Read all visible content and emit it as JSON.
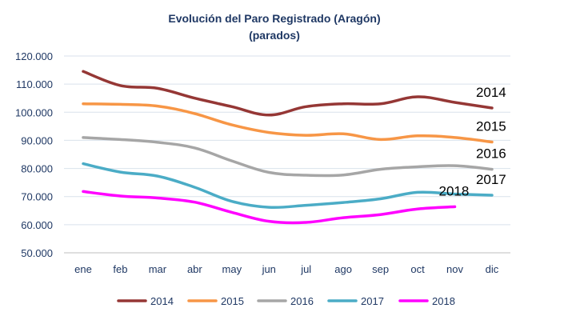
{
  "chart_data": {
    "type": "line",
    "title": "Evolución del Paro Registrado (Aragón)",
    "subtitle": "(parados)",
    "xlabel": "",
    "ylabel": "",
    "categories": [
      "ene",
      "feb",
      "mar",
      "abr",
      "may",
      "jun",
      "jul",
      "ago",
      "sep",
      "oct",
      "nov",
      "dic"
    ],
    "ylim": [
      50000,
      120000
    ],
    "yticks": [
      {
        "value": 50000,
        "label": "50.000"
      },
      {
        "value": 60000,
        "label": "60.000"
      },
      {
        "value": 70000,
        "label": "70.000"
      },
      {
        "value": 80000,
        "label": "80.000"
      },
      {
        "value": 90000,
        "label": "90.000"
      },
      {
        "value": 100000,
        "label": "100.000"
      },
      {
        "value": 110000,
        "label": "110.000"
      },
      {
        "value": 120000,
        "label": "120.000"
      }
    ],
    "grid": true,
    "legend_position": "bottom",
    "series": [
      {
        "name": "2014",
        "color": "#953735",
        "values": [
          114500,
          109500,
          108500,
          105000,
          102000,
          99000,
          102000,
          103000,
          103000,
          105500,
          103500,
          101500
        ]
      },
      {
        "name": "2015",
        "color": "#f79646",
        "values": [
          103000,
          102800,
          102200,
          99500,
          95500,
          92800,
          91800,
          92300,
          90300,
          91600,
          91000,
          89400
        ]
      },
      {
        "name": "2016",
        "color": "#a6a6a6",
        "values": [
          91000,
          90300,
          89300,
          87300,
          82700,
          78600,
          77600,
          77700,
          79700,
          80600,
          81000,
          79700
        ]
      },
      {
        "name": "2017",
        "color": "#4bacc6",
        "values": [
          81700,
          78700,
          77300,
          73300,
          68300,
          66200,
          66900,
          67900,
          69200,
          71500,
          70900,
          70500
        ]
      },
      {
        "name": "2018",
        "color": "#ff00ff",
        "values": [
          71800,
          70200,
          69500,
          68000,
          64400,
          61200,
          60800,
          62500,
          63600,
          65600,
          66400,
          null
        ]
      }
    ]
  }
}
